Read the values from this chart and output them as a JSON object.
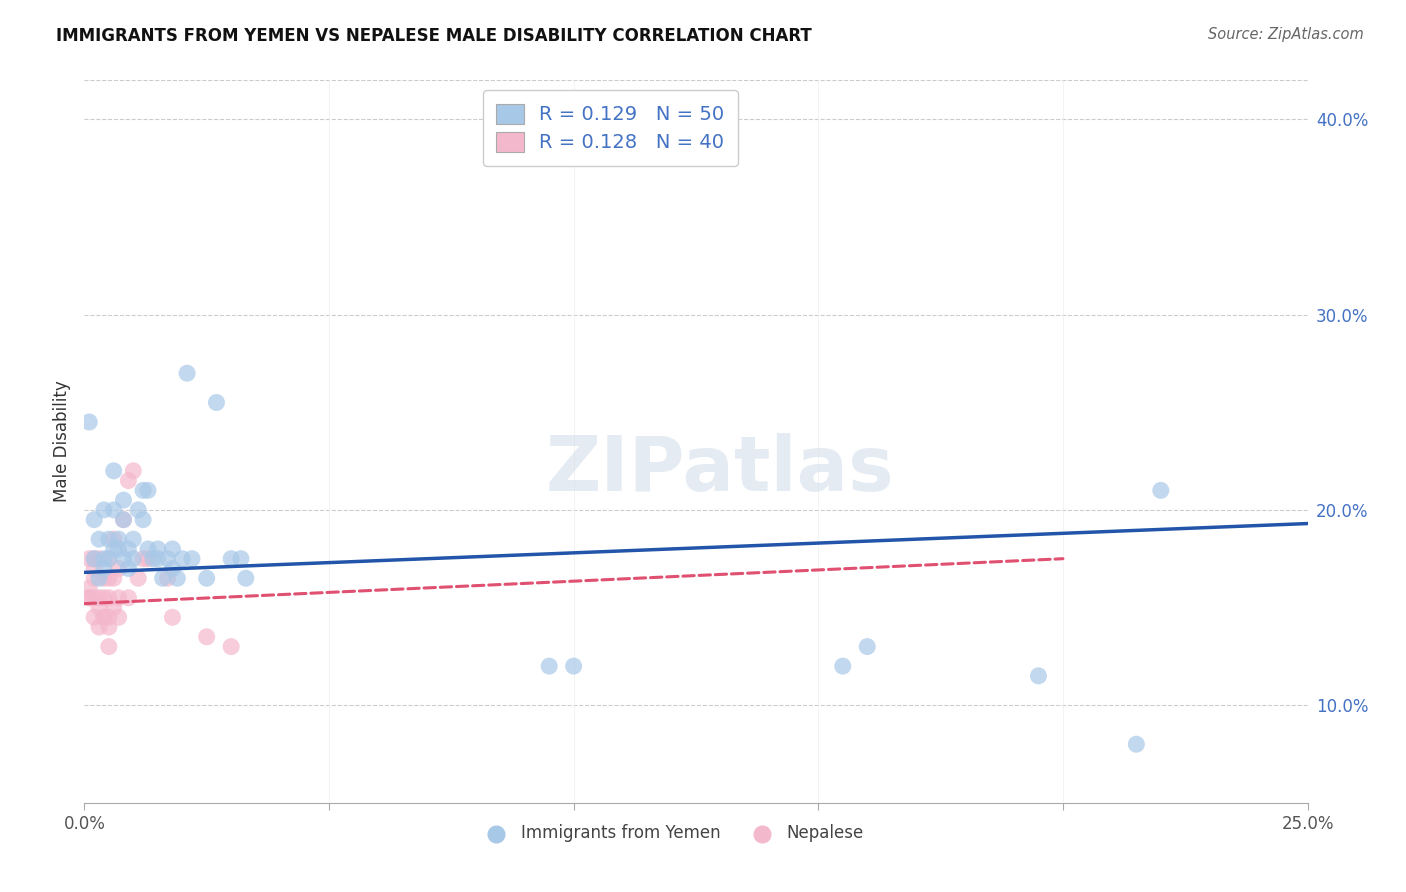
{
  "title": "IMMIGRANTS FROM YEMEN VS NEPALESE MALE DISABILITY CORRELATION CHART",
  "source": "Source: ZipAtlas.com",
  "ylabel": "Male Disability",
  "xlim": [
    0.0,
    0.25
  ],
  "ylim": [
    0.05,
    0.42
  ],
  "ytick_vals": [
    0.1,
    0.2,
    0.3,
    0.4
  ],
  "ytick_labels": [
    "10.0%",
    "20.0%",
    "30.0%",
    "40.0%"
  ],
  "xtick_vals": [
    0.0,
    0.05,
    0.1,
    0.15,
    0.2,
    0.25
  ],
  "xtick_labels": [
    "0.0%",
    "",
    "",
    "",
    "",
    "25.0%"
  ],
  "legend_R_blue": "0.129",
  "legend_N_blue": "50",
  "legend_R_pink": "0.128",
  "legend_N_pink": "40",
  "blue_color": "#a8c8e8",
  "pink_color": "#f4b8cc",
  "blue_line_color": "#2255aa",
  "pink_line_color": "#e05070",
  "watermark": "ZIPatlas",
  "blue_x": [
    0.001,
    0.002,
    0.002,
    0.003,
    0.003,
    0.004,
    0.004,
    0.004,
    0.005,
    0.005,
    0.006,
    0.006,
    0.006,
    0.007,
    0.007,
    0.008,
    0.008,
    0.008,
    0.009,
    0.009,
    0.01,
    0.01,
    0.011,
    0.012,
    0.012,
    0.013,
    0.013,
    0.014,
    0.015,
    0.015,
    0.016,
    0.017,
    0.018,
    0.018,
    0.019,
    0.02,
    0.021,
    0.022,
    0.025,
    0.027,
    0.03,
    0.032,
    0.033,
    0.095,
    0.1,
    0.155,
    0.16,
    0.195,
    0.215,
    0.22
  ],
  "blue_y": [
    0.245,
    0.175,
    0.195,
    0.165,
    0.185,
    0.175,
    0.17,
    0.2,
    0.185,
    0.175,
    0.22,
    0.2,
    0.18,
    0.185,
    0.18,
    0.205,
    0.195,
    0.175,
    0.18,
    0.17,
    0.185,
    0.175,
    0.2,
    0.195,
    0.21,
    0.21,
    0.18,
    0.175,
    0.18,
    0.175,
    0.165,
    0.175,
    0.18,
    0.17,
    0.165,
    0.175,
    0.27,
    0.175,
    0.165,
    0.255,
    0.175,
    0.175,
    0.165,
    0.12,
    0.12,
    0.12,
    0.13,
    0.115,
    0.08,
    0.21
  ],
  "pink_x": [
    0.001,
    0.001,
    0.001,
    0.001,
    0.002,
    0.002,
    0.002,
    0.002,
    0.002,
    0.003,
    0.003,
    0.003,
    0.003,
    0.004,
    0.004,
    0.004,
    0.004,
    0.005,
    0.005,
    0.005,
    0.005,
    0.005,
    0.005,
    0.006,
    0.006,
    0.006,
    0.007,
    0.007,
    0.007,
    0.008,
    0.009,
    0.009,
    0.01,
    0.011,
    0.012,
    0.013,
    0.017,
    0.018,
    0.025,
    0.03
  ],
  "pink_y": [
    0.155,
    0.16,
    0.175,
    0.155,
    0.145,
    0.155,
    0.17,
    0.165,
    0.175,
    0.14,
    0.15,
    0.155,
    0.175,
    0.145,
    0.155,
    0.165,
    0.145,
    0.13,
    0.145,
    0.165,
    0.155,
    0.175,
    0.14,
    0.15,
    0.185,
    0.165,
    0.155,
    0.17,
    0.145,
    0.195,
    0.215,
    0.155,
    0.22,
    0.165,
    0.175,
    0.175,
    0.165,
    0.145,
    0.135,
    0.13
  ],
  "blue_trend_x0": 0.0,
  "blue_trend_y0": 0.168,
  "blue_trend_x1": 0.25,
  "blue_trend_y1": 0.193,
  "pink_trend_x0": 0.0,
  "pink_trend_y0": 0.152,
  "pink_trend_x1": 0.2,
  "pink_trend_y1": 0.175
}
